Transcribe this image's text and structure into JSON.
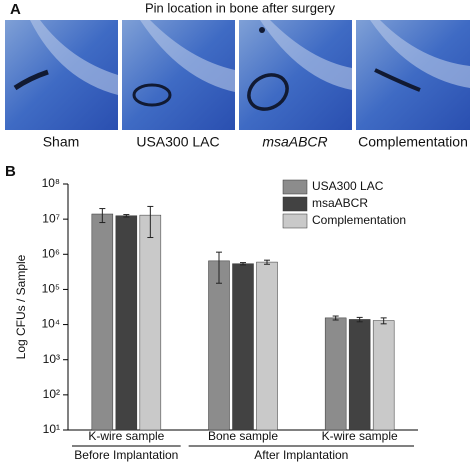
{
  "panel_a": {
    "label": "A",
    "title": "Pin location in bone after surgery",
    "images": [
      {
        "caption": "Sham"
      },
      {
        "caption": "USA300 LAC"
      },
      {
        "caption": "msaABCR",
        "italic": true
      },
      {
        "caption": "Complementation"
      }
    ]
  },
  "panel_b_label": "B",
  "chart_data": {
    "type": "bar",
    "y_label": "Log CFUs / Sample",
    "log_scale": true,
    "legend": "upper right",
    "groups": [
      {
        "name": "Before Implantation",
        "categories": [
          "K-wire sample"
        ]
      },
      {
        "name": "After Implantation",
        "categories": [
          "Bone sample",
          "K-wire sample"
        ]
      }
    ],
    "series": [
      {
        "name": "USA300 LAC",
        "color": "#8c8c8c",
        "values": [
          14000000,
          650000,
          15500
        ],
        "errors": [
          6000000,
          500000,
          2000
        ]
      },
      {
        "name": "msaABCR",
        "color": "#424242",
        "values": [
          12500000,
          540000,
          14000
        ],
        "errors": [
          1000000,
          40000,
          2000
        ]
      },
      {
        "name": "Complementation",
        "color": "#c9c9c9",
        "values": [
          13000000,
          600000,
          13000
        ],
        "errors": [
          10000000,
          80000,
          2500
        ]
      }
    ],
    "ylim": [
      10,
      100000000
    ],
    "yticks": [
      {
        "value": 10,
        "label": "10¹"
      },
      {
        "value": 100,
        "label": "10²"
      },
      {
        "value": 1000,
        "label": "10³"
      },
      {
        "value": 10000,
        "label": "10⁴"
      },
      {
        "value": 100000,
        "label": "10⁵"
      },
      {
        "value": 1000000,
        "label": "10⁶"
      },
      {
        "value": 10000000,
        "label": "10⁷"
      },
      {
        "value": 100000000,
        "label": "10⁸"
      }
    ]
  }
}
